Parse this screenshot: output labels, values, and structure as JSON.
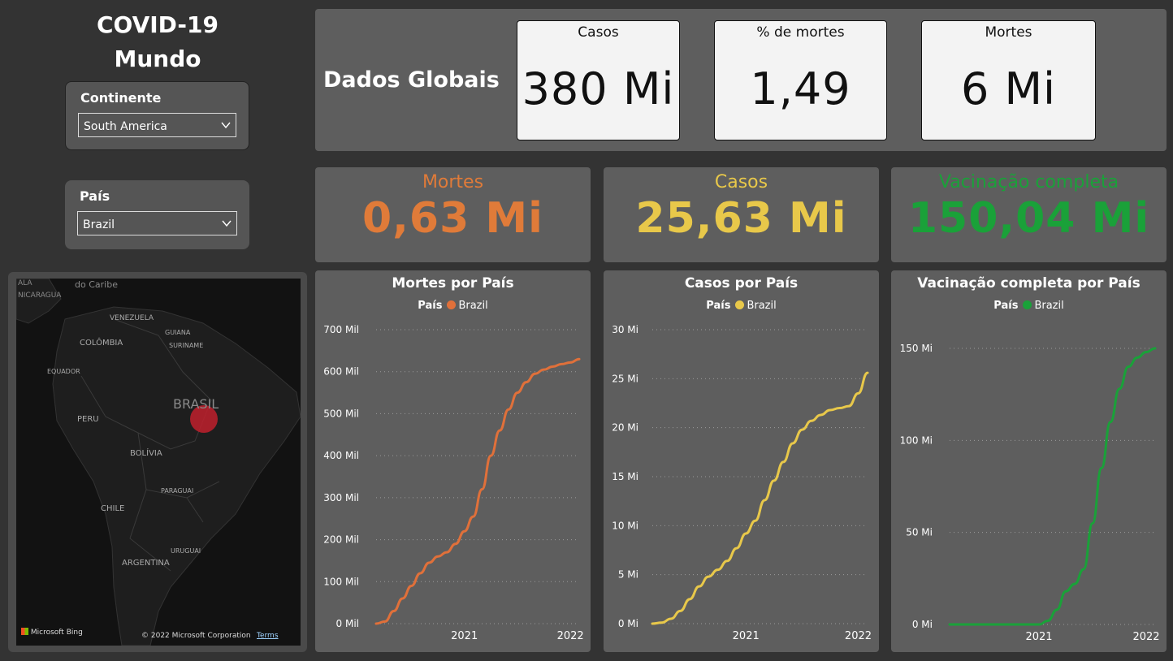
{
  "header": {
    "title_line1": "COVID-19",
    "title_line2": "Mundo"
  },
  "filters": {
    "continent": {
      "label": "Continente",
      "value": "South America"
    },
    "country": {
      "label": "País",
      "value": "Brazil"
    }
  },
  "global": {
    "label": "Dados Globais",
    "cards": [
      {
        "title": "Casos",
        "value": "380 Mi"
      },
      {
        "title": "% de mortes",
        "value": "1,49"
      },
      {
        "title": "Mortes",
        "value": "6 Mi"
      }
    ]
  },
  "kpis": [
    {
      "title": "Mortes",
      "value": "0,63 Mi",
      "color": "#e07b39"
    },
    {
      "title": "Casos",
      "value": "25,63 Mi",
      "color": "#e8c84a"
    },
    {
      "title": "Vacinação completa",
      "value": "150,04 Mi",
      "color": "#1aa139"
    }
  ],
  "map": {
    "labels": [
      "ALA",
      "do Caribe",
      "NICARAGUA",
      "VENEZUELA",
      "GUIANA",
      "COLÔMBIA",
      "SURINAME",
      "EQUADOR",
      "PERU",
      "BRASIL",
      "BOLÍVIA",
      "PARAGUAI",
      "CHILE",
      "URUGUAI",
      "ARGENTINA"
    ],
    "brand": "Microsoft Bing",
    "copyright": "© 2022 Microsoft Corporation",
    "terms": "Terms",
    "bubble_color": "#c0202d"
  },
  "chart_data": [
    {
      "type": "line",
      "title": "Mortes por País",
      "legend_title": "País",
      "color": "#e0703a",
      "series": [
        {
          "name": "Brazil",
          "x": [
            "2020-03",
            "2020-04",
            "2020-05",
            "2020-06",
            "2020-07",
            "2020-08",
            "2020-09",
            "2020-10",
            "2020-11",
            "2020-12",
            "2021-01",
            "2021-02",
            "2021-03",
            "2021-04",
            "2021-05",
            "2021-06",
            "2021-07",
            "2021-08",
            "2021-09",
            "2021-10",
            "2021-11",
            "2021-12",
            "2022-01",
            "2022-02"
          ],
          "values": [
            0,
            5,
            30,
            60,
            90,
            120,
            145,
            160,
            170,
            190,
            220,
            255,
            320,
            400,
            460,
            510,
            550,
            575,
            595,
            605,
            612,
            618,
            622,
            630
          ]
        }
      ],
      "yticks": [
        "700 Mil",
        "600 Mil",
        "500 Mil",
        "400 Mil",
        "300 Mil",
        "200 Mil",
        "100 Mil",
        "0 Mil"
      ],
      "ylim": [
        0,
        700
      ],
      "xticks": [
        "2021",
        "2022"
      ]
    },
    {
      "type": "line",
      "title": "Casos por País",
      "legend_title": "País",
      "color": "#e8c84a",
      "series": [
        {
          "name": "Brazil",
          "x": [
            "2020-03",
            "2020-04",
            "2020-05",
            "2020-06",
            "2020-07",
            "2020-08",
            "2020-09",
            "2020-10",
            "2020-11",
            "2020-12",
            "2021-01",
            "2021-02",
            "2021-03",
            "2021-04",
            "2021-05",
            "2021-06",
            "2021-07",
            "2021-08",
            "2021-09",
            "2021-10",
            "2021-11",
            "2021-12",
            "2022-01",
            "2022-02"
          ],
          "values": [
            0,
            0.1,
            0.5,
            1.3,
            2.5,
            3.8,
            4.8,
            5.5,
            6.4,
            7.7,
            9.2,
            10.5,
            12.6,
            14.6,
            16.5,
            18.4,
            19.8,
            20.7,
            21.3,
            21.8,
            22.0,
            22.2,
            23.5,
            25.6
          ]
        }
      ],
      "yticks": [
        "30 Mi",
        "25 Mi",
        "20 Mi",
        "15 Mi",
        "10 Mi",
        "5 Mi",
        "0 Mi"
      ],
      "ylim": [
        0,
        30
      ],
      "xticks": [
        "2021",
        "2022"
      ]
    },
    {
      "type": "line",
      "title": "Vacinação completa por País",
      "legend_title": "País",
      "color": "#1aa139",
      "series": [
        {
          "name": "Brazil",
          "x": [
            "2020-03",
            "2020-04",
            "2020-05",
            "2020-06",
            "2020-07",
            "2020-08",
            "2020-09",
            "2020-10",
            "2020-11",
            "2020-12",
            "2021-01",
            "2021-02",
            "2021-03",
            "2021-04",
            "2021-05",
            "2021-06",
            "2021-07",
            "2021-08",
            "2021-09",
            "2021-10",
            "2021-11",
            "2021-12",
            "2022-01",
            "2022-02"
          ],
          "values": [
            0,
            0,
            0,
            0,
            0,
            0,
            0,
            0,
            0,
            0,
            0,
            2,
            8,
            18,
            22,
            30,
            55,
            85,
            110,
            128,
            140,
            145,
            148,
            150
          ]
        }
      ],
      "yticks": [
        "150 Mi",
        "100 Mi",
        "50 Mi",
        "0 Mi"
      ],
      "ylim": [
        0,
        150
      ],
      "xticks": [
        "2021",
        "2022"
      ]
    }
  ]
}
